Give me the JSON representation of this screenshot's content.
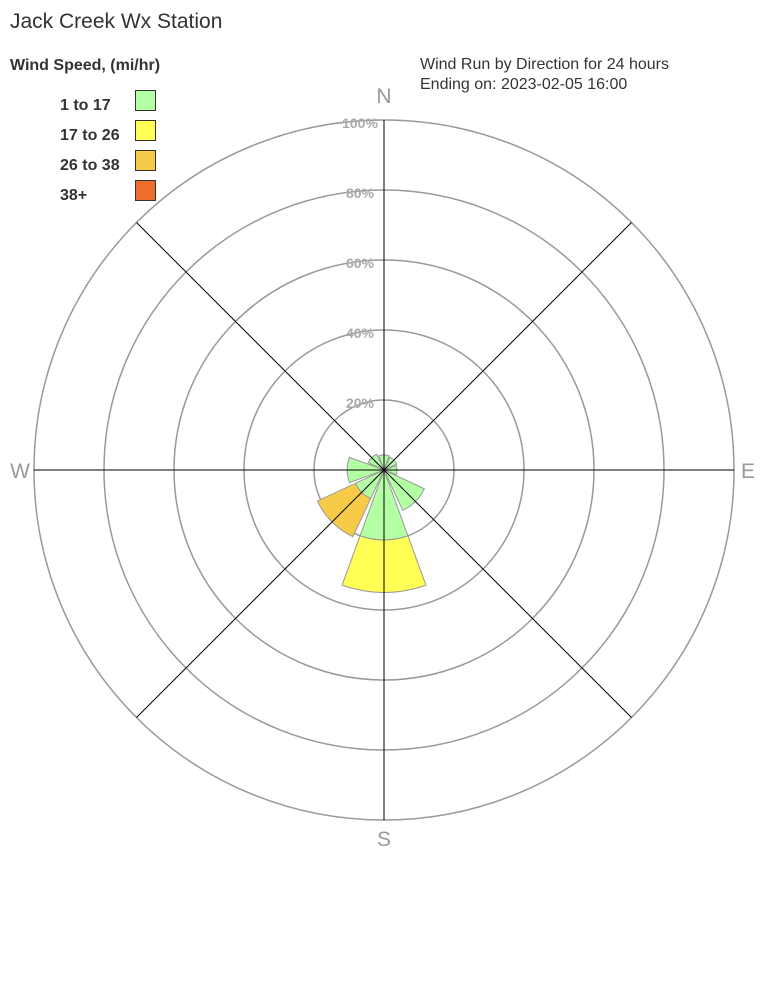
{
  "chart_data": {
    "type": "windrose",
    "title": "Jack Creek Wx Station",
    "subtitle": [
      "Wind Run by Direction for 24 hours",
      "Ending on: 2023-02-05 16:00"
    ],
    "legend_title": "Wind Speed, (mi/hr)",
    "legend_placement": "top-left",
    "bins": [
      {
        "label": "1 to 17",
        "color": "#b3ffa3"
      },
      {
        "label": "17 to 26",
        "color": "#ffff55"
      },
      {
        "label": "26 to 38",
        "color": "#f7cb47"
      },
      {
        "label": "38+",
        "color": "#ef6d2c"
      }
    ],
    "radial_ticks": [
      "20%",
      "40%",
      "60%",
      "80%",
      "100%"
    ],
    "radial_range": [
      0,
      100
    ],
    "compass_labels": [
      "N",
      "E",
      "S",
      "W"
    ],
    "directions": [
      "N",
      "NE",
      "E",
      "SE",
      "S",
      "SW",
      "W",
      "NW"
    ],
    "values": [
      [
        4.3,
        0,
        0,
        0
      ],
      [
        4,
        0,
        0,
        0
      ],
      [
        3.7,
        0,
        0,
        0
      ],
      [
        12.7,
        0,
        0,
        0
      ],
      [
        20,
        15,
        0,
        0
      ],
      [
        9,
        0,
        12,
        0
      ],
      [
        10.5,
        0,
        0,
        0
      ],
      [
        5,
        0,
        0,
        0
      ]
    ]
  }
}
